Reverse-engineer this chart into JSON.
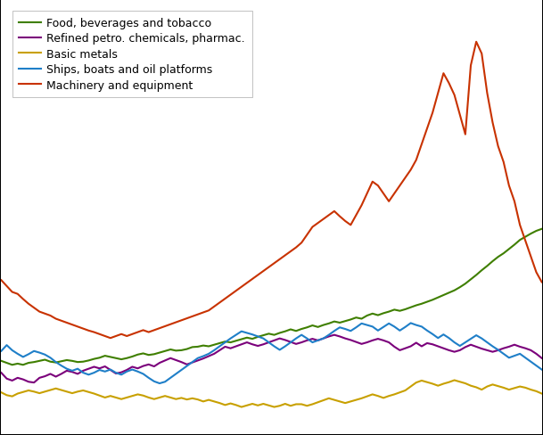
{
  "legend_entries": [
    "Food, beverages and tobacco",
    "Refined petro. chemicals, pharmac.",
    "Basic metals",
    "Ships, boats and oil platforms",
    "Machinery and equipment"
  ],
  "line_colors": [
    "#3f7f00",
    "#7b007b",
    "#c8a000",
    "#1f7fc8",
    "#c83200"
  ],
  "background_color": "#ffffff",
  "grid_color": "#c8c8c8",
  "food_bev_tobacco": [
    18.5,
    18.0,
    17.5,
    17.8,
    17.5,
    18.0,
    18.2,
    18.5,
    18.8,
    18.3,
    18.1,
    18.4,
    18.7,
    18.5,
    18.2,
    18.3,
    18.6,
    19.0,
    19.3,
    19.8,
    19.5,
    19.2,
    18.9,
    19.2,
    19.6,
    20.1,
    20.4,
    20.0,
    20.2,
    20.6,
    21.0,
    21.4,
    21.1,
    21.2,
    21.5,
    22.0,
    22.1,
    22.4,
    22.2,
    22.6,
    23.0,
    23.4,
    23.2,
    23.6,
    24.0,
    24.4,
    24.1,
    24.6,
    25.0,
    25.4,
    25.1,
    25.6,
    26.0,
    26.5,
    26.1,
    26.6,
    27.0,
    27.5,
    27.1,
    27.6,
    28.0,
    28.5,
    28.2,
    28.6,
    29.0,
    29.5,
    29.2,
    30.0,
    30.5,
    30.1,
    30.6,
    31.0,
    31.5,
    31.2,
    31.6,
    32.1,
    32.6,
    33.0,
    33.5,
    34.0,
    34.6,
    35.2,
    35.8,
    36.4,
    37.2,
    38.1,
    39.2,
    40.3,
    41.5,
    42.6,
    43.8,
    44.9,
    45.8,
    46.9,
    48.0,
    49.2,
    50.0,
    50.8,
    51.5,
    52.0
  ],
  "refined_petro": [
    15.5,
    14.0,
    13.5,
    14.2,
    13.8,
    13.2,
    13.0,
    14.2,
    14.6,
    15.2,
    14.5,
    15.2,
    16.0,
    15.7,
    15.2,
    16.0,
    16.5,
    17.0,
    16.6,
    17.1,
    16.2,
    15.3,
    15.6,
    16.2,
    17.0,
    16.6,
    17.2,
    17.6,
    17.1,
    18.0,
    18.6,
    19.2,
    18.7,
    18.2,
    17.6,
    18.1,
    18.6,
    19.1,
    19.7,
    20.3,
    21.2,
    22.1,
    21.7,
    22.2,
    22.7,
    23.2,
    22.7,
    22.3,
    22.7,
    23.2,
    23.7,
    24.2,
    23.8,
    23.3,
    22.8,
    23.2,
    23.7,
    24.1,
    23.7,
    24.2,
    24.7,
    25.1,
    24.7,
    24.2,
    23.8,
    23.3,
    22.8,
    23.2,
    23.7,
    24.1,
    23.7,
    23.2,
    22.1,
    21.2,
    21.7,
    22.2,
    23.1,
    22.2,
    23.0,
    22.7,
    22.2,
    21.7,
    21.2,
    20.8,
    21.2,
    22.0,
    22.6,
    22.1,
    21.6,
    21.2,
    20.8,
    21.2,
    21.7,
    22.1,
    22.6,
    22.1,
    21.7,
    21.2,
    20.3,
    19.2
  ],
  "basic_metals": [
    10.5,
    9.8,
    9.5,
    10.2,
    10.6,
    11.0,
    10.7,
    10.3,
    10.7,
    11.1,
    11.5,
    11.1,
    10.7,
    10.3,
    10.7,
    11.0,
    10.6,
    10.2,
    9.7,
    9.2,
    9.6,
    9.2,
    8.8,
    9.2,
    9.6,
    10.0,
    9.7,
    9.2,
    8.8,
    9.2,
    9.6,
    9.2,
    8.8,
    9.1,
    8.7,
    9.0,
    8.7,
    8.2,
    8.6,
    8.2,
    7.8,
    7.3,
    7.7,
    7.3,
    6.8,
    7.2,
    7.6,
    7.2,
    7.6,
    7.2,
    6.8,
    7.1,
    7.6,
    7.1,
    7.5,
    7.5,
    7.1,
    7.5,
    8.0,
    8.5,
    9.0,
    8.6,
    8.2,
    7.8,
    8.2,
    8.6,
    9.0,
    9.5,
    10.0,
    9.6,
    9.1,
    9.6,
    10.0,
    10.5,
    11.0,
    12.0,
    13.0,
    13.5,
    13.1,
    12.7,
    12.2,
    12.7,
    13.1,
    13.6,
    13.2,
    12.8,
    12.2,
    11.8,
    11.2,
    12.0,
    12.5,
    12.1,
    11.7,
    11.2,
    11.6,
    12.0,
    11.7,
    11.2,
    10.8,
    10.2
  ],
  "ships_boats": [
    21.0,
    22.5,
    21.2,
    20.3,
    19.5,
    20.2,
    21.0,
    20.6,
    20.1,
    19.3,
    18.2,
    17.3,
    16.5,
    16.0,
    16.5,
    15.5,
    15.0,
    15.5,
    16.2,
    15.8,
    16.3,
    15.5,
    15.0,
    15.8,
    16.3,
    15.8,
    15.2,
    14.2,
    13.3,
    12.8,
    13.2,
    14.2,
    15.2,
    16.2,
    17.2,
    18.2,
    19.2,
    19.7,
    20.3,
    21.2,
    22.2,
    23.2,
    24.2,
    25.1,
    26.0,
    25.6,
    25.2,
    24.7,
    24.2,
    23.2,
    22.2,
    21.3,
    22.2,
    23.2,
    24.2,
    25.1,
    24.2,
    23.2,
    23.7,
    24.2,
    25.1,
    26.1,
    27.0,
    26.6,
    26.1,
    27.0,
    28.0,
    27.6,
    27.2,
    26.2,
    27.1,
    28.0,
    27.2,
    26.2,
    27.1,
    28.1,
    27.6,
    27.2,
    26.2,
    25.3,
    24.3,
    25.2,
    24.3,
    23.2,
    22.3,
    23.2,
    24.1,
    25.0,
    24.2,
    23.2,
    22.2,
    21.3,
    20.3,
    19.3,
    19.8,
    20.3,
    19.3,
    18.3,
    17.3,
    16.3
  ],
  "machinery_equip": [
    39.0,
    37.5,
    36.0,
    35.5,
    34.2,
    33.0,
    32.0,
    31.0,
    30.5,
    30.0,
    29.2,
    28.7,
    28.2,
    27.7,
    27.2,
    26.7,
    26.2,
    25.8,
    25.3,
    24.8,
    24.3,
    24.8,
    25.3,
    24.8,
    25.3,
    25.8,
    26.3,
    25.8,
    26.3,
    26.8,
    27.3,
    27.8,
    28.3,
    28.8,
    29.3,
    29.8,
    30.3,
    30.8,
    31.3,
    32.3,
    33.3,
    34.3,
    35.3,
    36.3,
    37.3,
    38.3,
    39.3,
    40.3,
    41.3,
    42.3,
    43.3,
    44.3,
    45.3,
    46.3,
    47.3,
    48.5,
    50.5,
    52.5,
    53.5,
    54.5,
    55.5,
    56.5,
    55.2,
    54.0,
    53.0,
    55.5,
    58.0,
    61.0,
    64.0,
    63.0,
    61.0,
    59.0,
    61.0,
    63.0,
    65.0,
    67.0,
    69.5,
    73.5,
    77.5,
    81.5,
    86.5,
    91.5,
    89.0,
    86.0,
    81.0,
    76.0,
    93.5,
    99.5,
    96.5,
    86.5,
    79.0,
    73.0,
    69.0,
    63.0,
    59.0,
    53.0,
    49.0,
    45.0,
    41.0,
    38.5
  ],
  "ylim": [
    0,
    110
  ],
  "xlim_min": 0,
  "xlim_max": 99,
  "figsize": [
    6.09,
    4.89
  ],
  "dpi": 100
}
